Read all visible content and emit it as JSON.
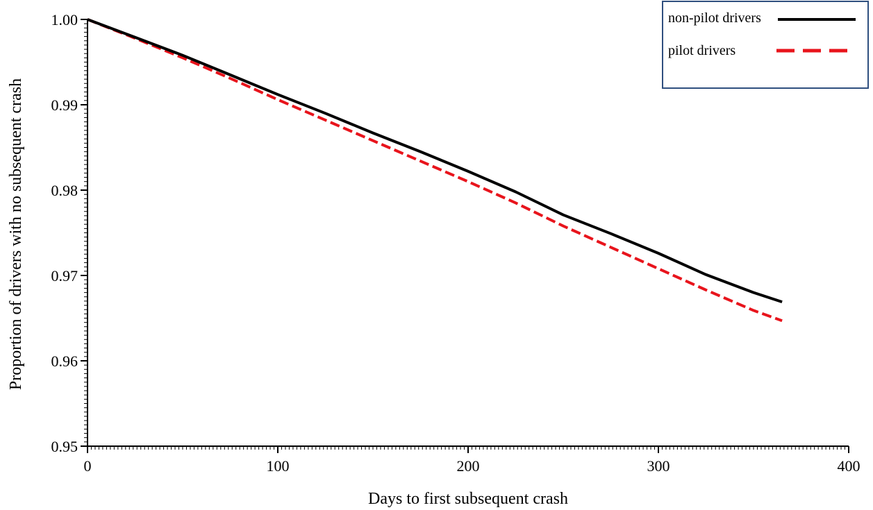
{
  "chart_data": {
    "type": "line",
    "title": "",
    "xlabel": "Days to first subsequent crash",
    "ylabel": "Proportion of drivers with no subsequent crash",
    "xlim": [
      0,
      400
    ],
    "ylim": [
      0.95,
      1.0
    ],
    "x_ticks": [
      0,
      100,
      200,
      300,
      400
    ],
    "x_tick_labels": [
      "0",
      "100",
      "200",
      "300",
      "400"
    ],
    "y_ticks": [
      0.95,
      0.96,
      0.97,
      0.98,
      0.99,
      1.0
    ],
    "y_tick_labels": [
      "0.95",
      "0.96",
      "0.97",
      "0.98",
      "0.99",
      "1.00"
    ],
    "grid": false,
    "legend_position": "top-right",
    "series": [
      {
        "name": "non-pilot drivers",
        "color": "#000000",
        "line_style": "solid",
        "x": [
          0,
          25,
          50,
          75,
          100,
          125,
          150,
          175,
          200,
          225,
          250,
          275,
          300,
          325,
          350,
          365
        ],
        "y": [
          1.0,
          0.9979,
          0.9958,
          0.9935,
          0.9912,
          0.989,
          0.9867,
          0.9845,
          0.9822,
          0.9798,
          0.9771,
          0.9749,
          0.9726,
          0.9701,
          0.968,
          0.9669
        ]
      },
      {
        "name": "pilot drivers",
        "color": "#e8141c",
        "line_style": "dashed",
        "x": [
          0,
          25,
          50,
          75,
          100,
          125,
          150,
          175,
          200,
          225,
          250,
          275,
          300,
          325,
          350,
          365
        ],
        "y": [
          1.0,
          0.9978,
          0.9955,
          0.9931,
          0.9906,
          0.9882,
          0.9858,
          0.9834,
          0.981,
          0.9785,
          0.9758,
          0.9733,
          0.9708,
          0.9683,
          0.9659,
          0.9647
        ]
      }
    ]
  }
}
